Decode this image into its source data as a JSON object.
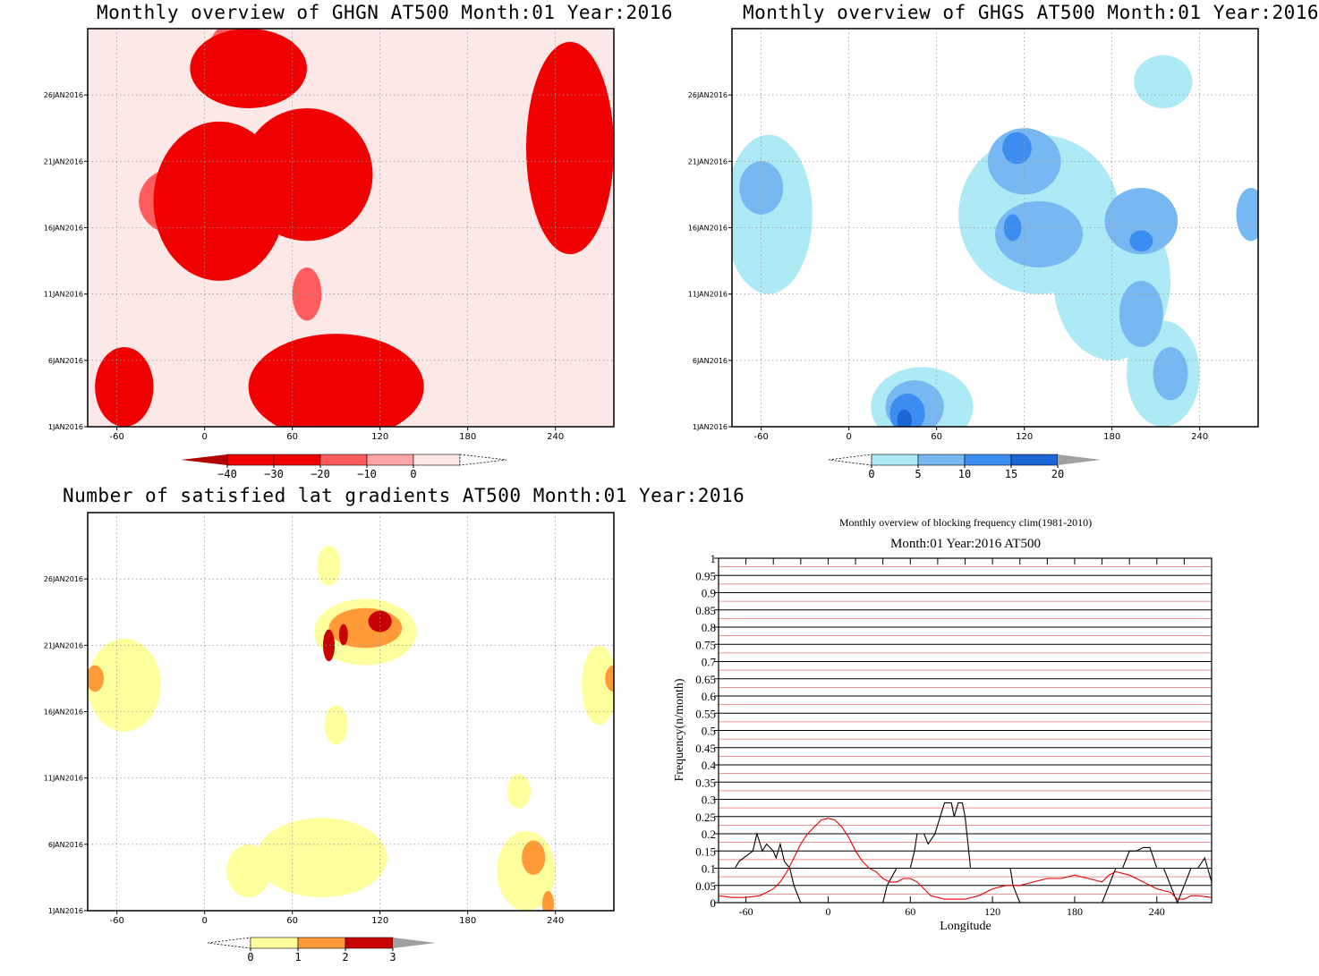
{
  "colors": {
    "red_scale": [
      "#b00000",
      "#f00000",
      "#ff5d5d",
      "#ffa6a6",
      "#fde8e8"
    ],
    "blue_scale": [
      "#aeeaf6",
      "#78b8f2",
      "#3b8ef0",
      "#1a66d6"
    ],
    "yellow_scale": [
      "#ffff9e",
      "#ff9a36",
      "#c80000"
    ],
    "freq_black": "#000000",
    "freq_red": "#e00000",
    "freq_grid_red": "#e07070"
  },
  "panels": {
    "ghgn": {
      "title": "Monthly overview of GHGN AT500 Month:01 Year:2016"
    },
    "ghgs": {
      "title": "Monthly overview of GHGS AT500 Month:01 Year:2016"
    },
    "grad": {
      "title": "Number of satisfied lat gradients AT500 Month:01 Year:2016"
    },
    "freq": {
      "title": "Monthly overview of blocking frequency clim(1981-2010)",
      "subtitle": "Month:01 Year:2016  AT500",
      "xlabel": "Longitude",
      "ylabel": "Frequency(n/month)"
    }
  },
  "chart_data": [
    {
      "type": "heatmap",
      "title": "Monthly overview of GHGN AT500 Month:01 Year:2016",
      "x_ticks": [
        "-60",
        "0",
        "60",
        "120",
        "180",
        "240"
      ],
      "x_tick_values": [
        -60,
        0,
        60,
        120,
        180,
        240
      ],
      "xlim": [
        -80,
        280
      ],
      "y_ticks": [
        "1JAN2016",
        "6JAN2016",
        "11JAN2016",
        "16JAN2016",
        "21JAN2016",
        "26JAN2016"
      ],
      "y_tick_values": [
        1,
        6,
        11,
        16,
        21,
        26
      ],
      "ylim": [
        1,
        31
      ],
      "colorbar": {
        "levels": [
          "-40",
          "-30",
          "-20",
          "-10",
          "0"
        ],
        "colors": [
          "#b00000",
          "#f00000",
          "#ff5d5d",
          "#ffa6a6",
          "#fde8e8"
        ]
      },
      "regions": [
        {
          "level": 3,
          "x": -55,
          "y": 4,
          "rx": 20,
          "ry": 3
        },
        {
          "level": 3,
          "x": 10,
          "y": 18,
          "rx": 45,
          "ry": 6
        },
        {
          "level": 3,
          "x": 70,
          "y": 20,
          "rx": 45,
          "ry": 5
        },
        {
          "level": 3,
          "x": 250,
          "y": 22,
          "rx": 30,
          "ry": 8
        },
        {
          "level": 3,
          "x": 30,
          "y": 28,
          "rx": 40,
          "ry": 3
        },
        {
          "level": 3,
          "x": 90,
          "y": 4,
          "rx": 60,
          "ry": 4
        },
        {
          "level": 2,
          "x": -20,
          "y": 18,
          "rx": 25,
          "ry": 2.5
        },
        {
          "level": 2,
          "x": 20,
          "y": 29,
          "rx": 18,
          "ry": 2.5
        },
        {
          "level": 2,
          "x": 80,
          "y": 21,
          "rx": 25,
          "ry": 2.2
        },
        {
          "level": 2,
          "x": 85,
          "y": 4,
          "rx": 25,
          "ry": 2.5
        },
        {
          "level": 2,
          "x": 260,
          "y": 21,
          "rx": 18,
          "ry": 3
        },
        {
          "level": 2,
          "x": 70,
          "y": 11,
          "rx": 10,
          "ry": 2
        },
        {
          "level": 1,
          "x": 270,
          "y": 21,
          "rx": 8,
          "ry": 0.7
        },
        {
          "level": 1,
          "x": 85,
          "y": 5,
          "rx": 6,
          "ry": 0.3
        }
      ]
    },
    {
      "type": "heatmap",
      "title": "Monthly overview of GHGS AT500 Month:01 Year:2016",
      "x_ticks": [
        "-60",
        "0",
        "60",
        "120",
        "180",
        "240"
      ],
      "x_tick_values": [
        -60,
        0,
        60,
        120,
        180,
        240
      ],
      "xlim": [
        -80,
        280
      ],
      "y_ticks": [
        "1JAN2016",
        "6JAN2016",
        "11JAN2016",
        "16JAN2016",
        "21JAN2016",
        "26JAN2016"
      ],
      "y_tick_values": [
        1,
        6,
        11,
        16,
        21,
        26
      ],
      "ylim": [
        1,
        31
      ],
      "colorbar": {
        "levels": [
          "0",
          "5",
          "10",
          "15",
          "20"
        ],
        "colors": [
          "#aeeaf6",
          "#78b8f2",
          "#3b8ef0",
          "#1a66d6"
        ]
      },
      "regions": [
        {
          "level": 0,
          "x": -55,
          "y": 17,
          "rx": 30,
          "ry": 6
        },
        {
          "level": 0,
          "x": 50,
          "y": 2.5,
          "rx": 35,
          "ry": 3
        },
        {
          "level": 0,
          "x": 130,
          "y": 17,
          "rx": 55,
          "ry": 6
        },
        {
          "level": 0,
          "x": 180,
          "y": 12,
          "rx": 40,
          "ry": 6
        },
        {
          "level": 0,
          "x": 215,
          "y": 5,
          "rx": 25,
          "ry": 4
        },
        {
          "level": 0,
          "x": 215,
          "y": 27,
          "rx": 20,
          "ry": 2
        },
        {
          "level": 1,
          "x": -60,
          "y": 19,
          "rx": 15,
          "ry": 2
        },
        {
          "level": 1,
          "x": 120,
          "y": 21,
          "rx": 25,
          "ry": 2.5
        },
        {
          "level": 1,
          "x": 130,
          "y": 15.5,
          "rx": 30,
          "ry": 2.5
        },
        {
          "level": 1,
          "x": 200,
          "y": 16.5,
          "rx": 25,
          "ry": 2.5
        },
        {
          "level": 1,
          "x": 200,
          "y": 9.5,
          "rx": 15,
          "ry": 2.5
        },
        {
          "level": 1,
          "x": 45,
          "y": 2.5,
          "rx": 20,
          "ry": 2
        },
        {
          "level": 1,
          "x": 220,
          "y": 5,
          "rx": 12,
          "ry": 2
        },
        {
          "level": 1,
          "x": 275,
          "y": 17,
          "rx": 10,
          "ry": 2
        },
        {
          "level": 2,
          "x": 115,
          "y": 22,
          "rx": 10,
          "ry": 1.2
        },
        {
          "level": 2,
          "x": 112,
          "y": 16,
          "rx": 6,
          "ry": 1
        },
        {
          "level": 2,
          "x": 40,
          "y": 2,
          "rx": 12,
          "ry": 1.5
        },
        {
          "level": 2,
          "x": 200,
          "y": 15,
          "rx": 8,
          "ry": 0.8
        },
        {
          "level": 3,
          "x": 38,
          "y": 1.5,
          "rx": 5,
          "ry": 0.8
        }
      ]
    },
    {
      "type": "heatmap",
      "title": "Number of satisfied lat gradients AT500 Month:01 Year:2016",
      "x_ticks": [
        "-60",
        "0",
        "60",
        "120",
        "180",
        "240"
      ],
      "x_tick_values": [
        -60,
        0,
        60,
        120,
        180,
        240
      ],
      "xlim": [
        -80,
        280
      ],
      "y_ticks": [
        "1JAN2016",
        "6JAN2016",
        "11JAN2016",
        "16JAN2016",
        "21JAN2016",
        "26JAN2016"
      ],
      "y_tick_values": [
        1,
        6,
        11,
        16,
        21,
        26
      ],
      "ylim": [
        1,
        31
      ],
      "colorbar": {
        "levels": [
          "0",
          "1",
          "2",
          "3"
        ],
        "colors": [
          "#ffff9e",
          "#ff9a36",
          "#c80000"
        ]
      },
      "regions": [
        {
          "level": 1,
          "x": -55,
          "y": 18,
          "rx": 25,
          "ry": 3.5
        },
        {
          "level": 1,
          "x": 110,
          "y": 22,
          "rx": 35,
          "ry": 2.5
        },
        {
          "level": 1,
          "x": 85,
          "y": 27,
          "rx": 8,
          "ry": 1.5
        },
        {
          "level": 1,
          "x": 90,
          "y": 15,
          "rx": 8,
          "ry": 1.5
        },
        {
          "level": 1,
          "x": 30,
          "y": 4,
          "rx": 15,
          "ry": 2
        },
        {
          "level": 1,
          "x": 80,
          "y": 5,
          "rx": 45,
          "ry": 3
        },
        {
          "level": 1,
          "x": 220,
          "y": 4,
          "rx": 20,
          "ry": 3
        },
        {
          "level": 1,
          "x": 270,
          "y": 18,
          "rx": 12,
          "ry": 3
        },
        {
          "level": 1,
          "x": 215,
          "y": 10,
          "rx": 8,
          "ry": 1.3
        },
        {
          "level": 2,
          "x": 110,
          "y": 22.3,
          "rx": 25,
          "ry": 1.5
        },
        {
          "level": 2,
          "x": -75,
          "y": 18.5,
          "rx": 6,
          "ry": 1
        },
        {
          "level": 2,
          "x": 280,
          "y": 18.5,
          "rx": 6,
          "ry": 1
        },
        {
          "level": 2,
          "x": 225,
          "y": 5,
          "rx": 8,
          "ry": 1.3
        },
        {
          "level": 2,
          "x": 235,
          "y": 1.5,
          "rx": 4,
          "ry": 1
        },
        {
          "level": 3,
          "x": 120,
          "y": 22.8,
          "rx": 8,
          "ry": 0.8
        },
        {
          "level": 3,
          "x": 85,
          "y": 21,
          "rx": 4,
          "ry": 1.2
        },
        {
          "level": 3,
          "x": 95,
          "y": 21.8,
          "rx": 3,
          "ry": 0.8
        }
      ]
    },
    {
      "type": "line",
      "title": "Monthly overview of blocking frequency clim(1981-2010)",
      "subtitle": "Month:01 Year:2016  AT500",
      "xlabel": "Longitude",
      "ylabel": "Frequency(n/month)",
      "x_ticks": [
        "-60",
        "0",
        "60",
        "120",
        "180",
        "240"
      ],
      "x_tick_values": [
        -60,
        0,
        60,
        120,
        180,
        240
      ],
      "xlim": [
        -80,
        280
      ],
      "y_ticks": [
        "0",
        "0.05",
        "0.1",
        "0.15",
        "0.2",
        "0.25",
        "0.3",
        "0.35",
        "0.4",
        "0.45",
        "0.5",
        "0.55",
        "0.6",
        "0.65",
        "0.7",
        "0.75",
        "0.8",
        "0.85",
        "0.9",
        "0.95",
        "1"
      ],
      "y_tick_values": [
        0,
        0.05,
        0.1,
        0.15,
        0.2,
        0.25,
        0.3,
        0.35,
        0.4,
        0.45,
        0.5,
        0.55,
        0.6,
        0.65,
        0.7,
        0.75,
        0.8,
        0.85,
        0.9,
        0.95,
        1
      ],
      "ylim": [
        0,
        1
      ],
      "grid": true,
      "series": [
        {
          "color": "#000000",
          "x": [
            -80,
            -68,
            -65,
            -55,
            -52,
            -48,
            -45,
            -40,
            -38,
            -35,
            -32,
            -28,
            -25,
            -20,
            -15,
            -10,
            -5,
            0,
            5,
            10,
            15,
            20,
            30,
            40,
            43,
            50,
            55,
            60,
            63,
            65,
            70,
            73,
            78,
            85,
            90,
            92,
            95,
            98,
            100,
            104,
            108,
            115,
            125,
            133,
            135,
            140,
            150,
            160,
            170,
            180,
            190,
            200,
            205,
            210,
            215,
            220,
            225,
            230,
            235,
            240,
            245,
            250,
            255,
            260,
            265,
            270,
            275,
            280
          ],
          "y": [
            0.1,
            0.1,
            0.12,
            0.15,
            0.2,
            0.15,
            0.17,
            0.15,
            0.13,
            0.17,
            0.12,
            0.1,
            0.05,
            0,
            0,
            0,
            0,
            0,
            0,
            0,
            0,
            0,
            0,
            0,
            0.05,
            0.1,
            0.1,
            0.1,
            0.15,
            0.2,
            0.2,
            0.17,
            0.2,
            0.29,
            0.29,
            0.25,
            0.29,
            0.29,
            0.25,
            0.1,
            0.1,
            0.1,
            0.1,
            0.1,
            0.05,
            0,
            0,
            0,
            0,
            0,
            0,
            0,
            0.05,
            0.1,
            0.1,
            0.15,
            0.15,
            0.16,
            0.16,
            0.1,
            0.1,
            0.05,
            0,
            0.05,
            0.1,
            0.1,
            0.13,
            0.06
          ]
        },
        {
          "color": "#e00000",
          "x": [
            -80,
            -70,
            -60,
            -50,
            -40,
            -35,
            -30,
            -25,
            -20,
            -15,
            -10,
            -5,
            0,
            5,
            10,
            15,
            20,
            25,
            30,
            35,
            40,
            45,
            50,
            55,
            60,
            65,
            70,
            75,
            80,
            85,
            90,
            95,
            100,
            110,
            120,
            130,
            140,
            150,
            160,
            170,
            180,
            190,
            200,
            205,
            210,
            220,
            230,
            240,
            250,
            255,
            260,
            265,
            270,
            280
          ],
          "y": [
            0.02,
            0.015,
            0.015,
            0.02,
            0.04,
            0.06,
            0.09,
            0.13,
            0.17,
            0.2,
            0.22,
            0.24,
            0.245,
            0.24,
            0.22,
            0.19,
            0.15,
            0.12,
            0.1,
            0.09,
            0.07,
            0.06,
            0.06,
            0.07,
            0.07,
            0.06,
            0.04,
            0.02,
            0.015,
            0.01,
            0.01,
            0.01,
            0.01,
            0.02,
            0.04,
            0.05,
            0.05,
            0.06,
            0.07,
            0.07,
            0.08,
            0.07,
            0.06,
            0.08,
            0.09,
            0.08,
            0.06,
            0.04,
            0.03,
            0.01,
            0.01,
            0.02,
            0.02,
            0.015
          ]
        }
      ]
    }
  ]
}
